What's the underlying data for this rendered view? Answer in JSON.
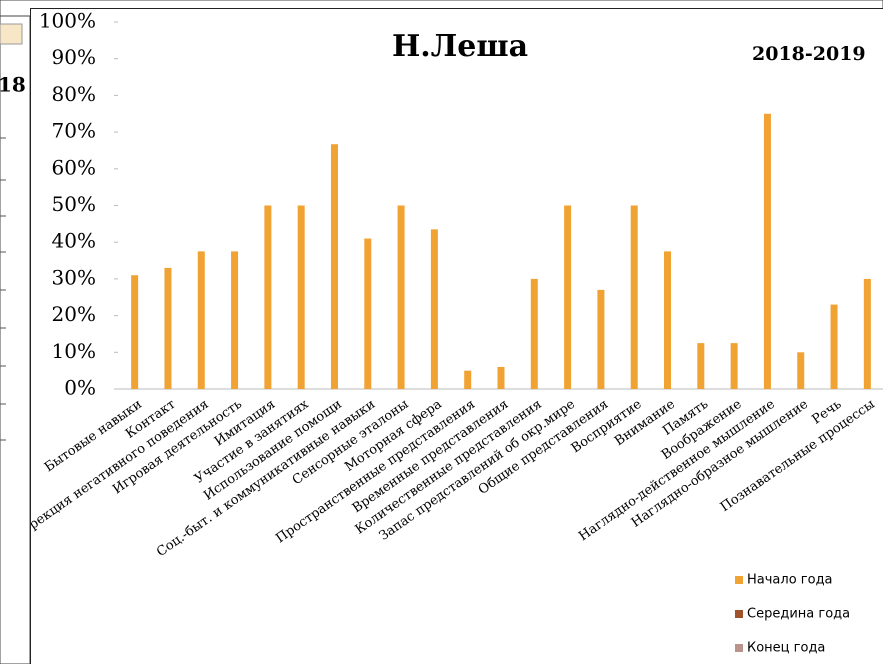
{
  "background": {
    "label": "18"
  },
  "chart_data": {
    "type": "bar",
    "title": "Н.Леша",
    "subtitle": "2018-2019",
    "categories": [
      "Бытовые навыки",
      "Контакт",
      "Коррекция негативного поведения",
      "Игровая деятельность",
      "Имитация",
      "Участие в занятиях",
      "Использование помощи",
      "Соц.-быт. и коммуникативные навыки",
      "Сенсорные  эталоны",
      "Моторная сфера",
      "Пространственные представления",
      "Временные представления",
      "Количественные представления",
      "Запас представлений об окр.мире",
      "Общие представления",
      "Восприятие",
      "Внимание",
      "Память",
      "Воображение",
      "Наглядно-действенное мышление",
      "Наглядно-образное мышление",
      "Речь",
      "Познавательные процессы"
    ],
    "series": [
      {
        "name": "Начало года",
        "color": "#f0a232",
        "values": [
          31,
          33,
          37.5,
          37.5,
          50,
          50,
          66.7,
          41,
          50,
          43.5,
          5,
          6,
          30,
          50,
          27,
          50,
          37.5,
          12.5,
          12.5,
          75,
          10,
          23,
          30
        ]
      },
      {
        "name": "Середина года",
        "color": "#a0522d",
        "values": [
          null,
          null,
          null,
          null,
          null,
          null,
          null,
          null,
          null,
          null,
          null,
          null,
          null,
          null,
          null,
          null,
          null,
          null,
          null,
          null,
          null,
          null,
          null
        ]
      },
      {
        "name": "Конец   года",
        "color": "#b8948a",
        "values": [
          null,
          null,
          null,
          null,
          null,
          null,
          null,
          null,
          null,
          null,
          null,
          null,
          null,
          null,
          null,
          null,
          null,
          null,
          null,
          null,
          null,
          null,
          null
        ]
      }
    ],
    "ylim": [
      0,
      100
    ],
    "yticks": [
      {
        "value": 0,
        "label": "0%"
      },
      {
        "value": 10,
        "label": "10%"
      },
      {
        "value": 20,
        "label": "20%"
      },
      {
        "value": 30,
        "label": "30%"
      },
      {
        "value": 40,
        "label": "40%"
      },
      {
        "value": 50,
        "label": "50%"
      },
      {
        "value": 60,
        "label": "60%"
      },
      {
        "value": 70,
        "label": "70%"
      },
      {
        "value": 80,
        "label": "80%"
      },
      {
        "value": 90,
        "label": "90%"
      },
      {
        "value": 100,
        "label": "100%"
      }
    ],
    "legend": "bottom-right"
  }
}
